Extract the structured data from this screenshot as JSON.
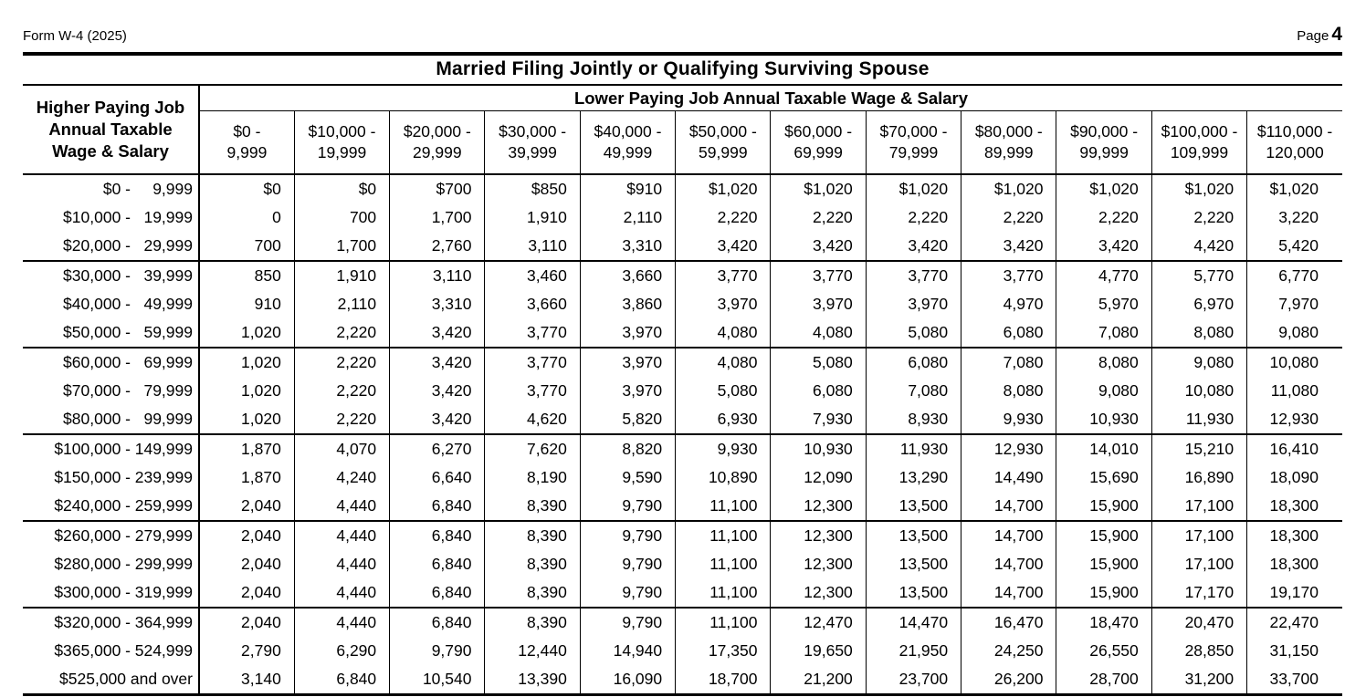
{
  "page": {
    "form_label": "Form W-4 (2025)",
    "page_word": "Page",
    "page_number": "4"
  },
  "table": {
    "title": "Married Filing Jointly or Qualifying Surviving Spouse",
    "row_axis_lines": [
      "Higher Paying Job",
      "Annual Taxable",
      "Wage & Salary"
    ],
    "col_axis_label": "Lower Paying Job Annual Taxable Wage & Salary",
    "col_headers": [
      {
        "top": "$0 -",
        "bottom": "9,999"
      },
      {
        "top": "$10,000 -",
        "bottom": "19,999"
      },
      {
        "top": "$20,000 -",
        "bottom": "29,999"
      },
      {
        "top": "$30,000 -",
        "bottom": "39,999"
      },
      {
        "top": "$40,000 -",
        "bottom": "49,999"
      },
      {
        "top": "$50,000 -",
        "bottom": "59,999"
      },
      {
        "top": "$60,000 -",
        "bottom": "69,999"
      },
      {
        "top": "$70,000 -",
        "bottom": "79,999"
      },
      {
        "top": "$80,000 -",
        "bottom": "89,999"
      },
      {
        "top": "$90,000 -",
        "bottom": "99,999"
      },
      {
        "top": "$100,000 -",
        "bottom": "109,999"
      },
      {
        "top": "$110,000 -",
        "bottom": "120,000"
      }
    ],
    "rows": [
      {
        "start": "$0 -",
        "end": "9,999",
        "values": [
          "$0",
          "$0",
          "$700",
          "$850",
          "$910",
          "$1,020",
          "$1,020",
          "$1,020",
          "$1,020",
          "$1,020",
          "$1,020",
          "$1,020"
        ]
      },
      {
        "start": "$10,000 -",
        "end": "19,999",
        "values": [
          "0",
          "700",
          "1,700",
          "1,910",
          "2,110",
          "2,220",
          "2,220",
          "2,220",
          "2,220",
          "2,220",
          "2,220",
          "3,220"
        ]
      },
      {
        "start": "$20,000 -",
        "end": "29,999",
        "values": [
          "700",
          "1,700",
          "2,760",
          "3,110",
          "3,310",
          "3,420",
          "3,420",
          "3,420",
          "3,420",
          "3,420",
          "4,420",
          "5,420"
        ]
      },
      {
        "start": "$30,000 -",
        "end": "39,999",
        "values": [
          "850",
          "1,910",
          "3,110",
          "3,460",
          "3,660",
          "3,770",
          "3,770",
          "3,770",
          "3,770",
          "4,770",
          "5,770",
          "6,770"
        ]
      },
      {
        "start": "$40,000 -",
        "end": "49,999",
        "values": [
          "910",
          "2,110",
          "3,310",
          "3,660",
          "3,860",
          "3,970",
          "3,970",
          "3,970",
          "4,970",
          "5,970",
          "6,970",
          "7,970"
        ]
      },
      {
        "start": "$50,000 -",
        "end": "59,999",
        "values": [
          "1,020",
          "2,220",
          "3,420",
          "3,770",
          "3,970",
          "4,080",
          "4,080",
          "5,080",
          "6,080",
          "7,080",
          "8,080",
          "9,080"
        ]
      },
      {
        "start": "$60,000 -",
        "end": "69,999",
        "values": [
          "1,020",
          "2,220",
          "3,420",
          "3,770",
          "3,970",
          "4,080",
          "5,080",
          "6,080",
          "7,080",
          "8,080",
          "9,080",
          "10,080"
        ]
      },
      {
        "start": "$70,000 -",
        "end": "79,999",
        "values": [
          "1,020",
          "2,220",
          "3,420",
          "3,770",
          "3,970",
          "5,080",
          "6,080",
          "7,080",
          "8,080",
          "9,080",
          "10,080",
          "11,080"
        ]
      },
      {
        "start": "$80,000 -",
        "end": "99,999",
        "values": [
          "1,020",
          "2,220",
          "3,420",
          "4,620",
          "5,820",
          "6,930",
          "7,930",
          "8,930",
          "9,930",
          "10,930",
          "11,930",
          "12,930"
        ]
      },
      {
        "start": "$100,000 -",
        "end": "149,999",
        "values": [
          "1,870",
          "4,070",
          "6,270",
          "7,620",
          "8,820",
          "9,930",
          "10,930",
          "11,930",
          "12,930",
          "14,010",
          "15,210",
          "16,410"
        ]
      },
      {
        "start": "$150,000 -",
        "end": "239,999",
        "values": [
          "1,870",
          "4,240",
          "6,640",
          "8,190",
          "9,590",
          "10,890",
          "12,090",
          "13,290",
          "14,490",
          "15,690",
          "16,890",
          "18,090"
        ]
      },
      {
        "start": "$240,000 -",
        "end": "259,999",
        "values": [
          "2,040",
          "4,440",
          "6,840",
          "8,390",
          "9,790",
          "11,100",
          "12,300",
          "13,500",
          "14,700",
          "15,900",
          "17,100",
          "18,300"
        ]
      },
      {
        "start": "$260,000 -",
        "end": "279,999",
        "values": [
          "2,040",
          "4,440",
          "6,840",
          "8,390",
          "9,790",
          "11,100",
          "12,300",
          "13,500",
          "14,700",
          "15,900",
          "17,100",
          "18,300"
        ]
      },
      {
        "start": "$280,000 -",
        "end": "299,999",
        "values": [
          "2,040",
          "4,440",
          "6,840",
          "8,390",
          "9,790",
          "11,100",
          "12,300",
          "13,500",
          "14,700",
          "15,900",
          "17,100",
          "18,300"
        ]
      },
      {
        "start": "$300,000 -",
        "end": "319,999",
        "values": [
          "2,040",
          "4,440",
          "6,840",
          "8,390",
          "9,790",
          "11,100",
          "12,300",
          "13,500",
          "14,700",
          "15,900",
          "17,170",
          "19,170"
        ]
      },
      {
        "start": "$320,000 -",
        "end": "364,999",
        "values": [
          "2,040",
          "4,440",
          "6,840",
          "8,390",
          "9,790",
          "11,100",
          "12,470",
          "14,470",
          "16,470",
          "18,470",
          "20,470",
          "22,470"
        ]
      },
      {
        "start": "$365,000 -",
        "end": "524,999",
        "values": [
          "2,790",
          "6,290",
          "9,790",
          "12,440",
          "14,940",
          "17,350",
          "19,650",
          "21,950",
          "24,250",
          "26,550",
          "28,850",
          "31,150"
        ]
      },
      {
        "start": "$525,000 and over",
        "end": "",
        "values": [
          "3,140",
          "6,840",
          "10,540",
          "13,390",
          "16,090",
          "18,700",
          "21,200",
          "23,700",
          "26,200",
          "28,700",
          "31,200",
          "33,700"
        ]
      }
    ]
  }
}
